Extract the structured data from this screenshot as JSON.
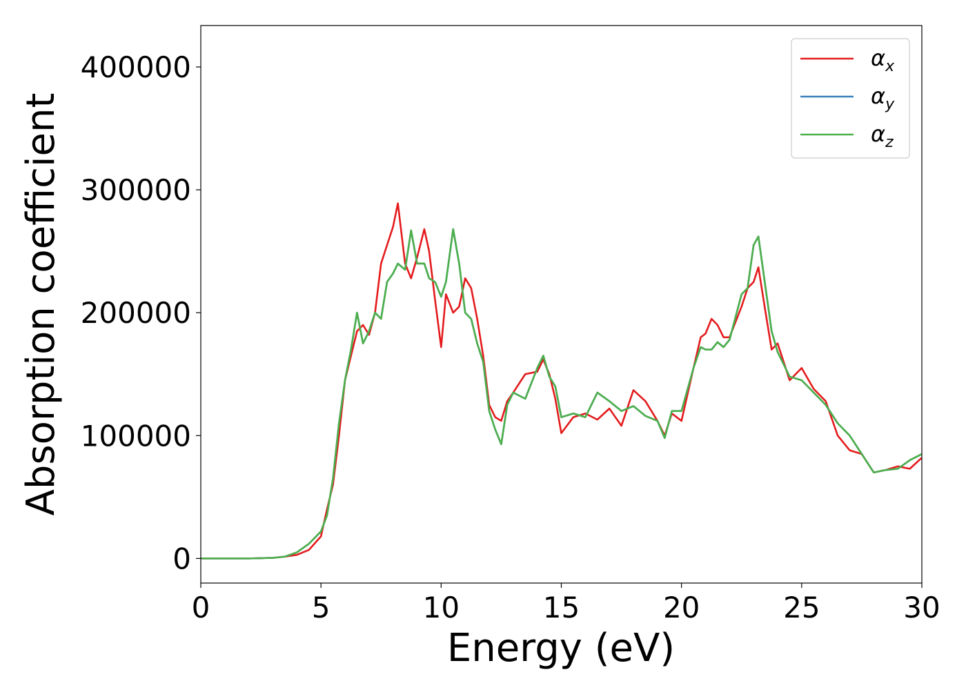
{
  "chart_data": {
    "type": "line",
    "xlabel": "Energy (eV)",
    "ylabel": "Absorption coefficient",
    "x": [
      0,
      1,
      2,
      3,
      3.5,
      4,
      4.5,
      5,
      5.25,
      5.5,
      5.75,
      6,
      6.25,
      6.5,
      6.75,
      7,
      7.25,
      7.5,
      7.75,
      8,
      8.2,
      8.5,
      8.75,
      9,
      9.3,
      9.5,
      9.75,
      10,
      10.2,
      10.5,
      10.75,
      11,
      11.25,
      11.5,
      11.75,
      12,
      12.25,
      12.5,
      12.75,
      13,
      13.5,
      14,
      14.25,
      14.5,
      14.75,
      15,
      15.5,
      16,
      16.5,
      17,
      17.5,
      18,
      18.5,
      19,
      19.3,
      19.6,
      20,
      20.5,
      20.8,
      21,
      21.25,
      21.5,
      21.75,
      22,
      22.5,
      22.75,
      23,
      23.2,
      23.5,
      23.75,
      24,
      24.5,
      25,
      25.5,
      26,
      26.5,
      27,
      27.5,
      28,
      28.5,
      29,
      29.5,
      30
    ],
    "series": [
      {
        "name": "αx",
        "color": "#e41a1c",
        "values": [
          0,
          0,
          0,
          500,
          1500,
          3000,
          7000,
          18000,
          40000,
          60000,
          100000,
          145000,
          165000,
          185000,
          190000,
          182000,
          200000,
          240000,
          255000,
          270000,
          289000,
          240000,
          228000,
          245000,
          268000,
          250000,
          210000,
          172000,
          215000,
          200000,
          205000,
          228000,
          220000,
          195000,
          165000,
          125000,
          115000,
          112000,
          128000,
          135000,
          150000,
          152000,
          162000,
          150000,
          130000,
          102000,
          115000,
          118000,
          113000,
          122000,
          108000,
          137000,
          128000,
          112000,
          100000,
          118000,
          112000,
          155000,
          180000,
          183000,
          195000,
          190000,
          180000,
          180000,
          205000,
          220000,
          225000,
          237000,
          200000,
          170000,
          175000,
          145000,
          155000,
          138000,
          128000,
          100000,
          88000,
          85000,
          70000,
          72000,
          75000,
          73000,
          82000
        ]
      },
      {
        "name": "αy",
        "color": "#377eb8",
        "values": [
          0,
          0,
          0,
          500,
          1500,
          5000,
          12000,
          22000,
          35000,
          65000,
          110000,
          145000,
          170000,
          200000,
          175000,
          185000,
          200000,
          195000,
          225000,
          232000,
          240000,
          235000,
          267000,
          240000,
          240000,
          228000,
          225000,
          213000,
          225000,
          268000,
          240000,
          200000,
          195000,
          175000,
          160000,
          120000,
          105000,
          93000,
          125000,
          135000,
          130000,
          155000,
          165000,
          148000,
          140000,
          115000,
          118000,
          115000,
          135000,
          128000,
          120000,
          124000,
          116000,
          112000,
          98000,
          120000,
          120000,
          155000,
          172000,
          170000,
          170000,
          176000,
          172000,
          178000,
          215000,
          220000,
          255000,
          262000,
          220000,
          185000,
          168000,
          148000,
          145000,
          135000,
          125000,
          110000,
          100000,
          85000,
          70000,
          72000,
          73000,
          80000,
          85000
        ]
      },
      {
        "name": "αz",
        "color": "#4daf4a",
        "values": [
          0,
          0,
          0,
          500,
          1500,
          5000,
          12000,
          22000,
          35000,
          65000,
          110000,
          145000,
          170000,
          200000,
          175000,
          185000,
          200000,
          195000,
          225000,
          232000,
          240000,
          235000,
          267000,
          240000,
          240000,
          228000,
          225000,
          213000,
          225000,
          268000,
          240000,
          200000,
          195000,
          175000,
          160000,
          120000,
          105000,
          93000,
          125000,
          135000,
          130000,
          155000,
          165000,
          148000,
          140000,
          115000,
          118000,
          115000,
          135000,
          128000,
          120000,
          124000,
          116000,
          112000,
          98000,
          120000,
          120000,
          155000,
          172000,
          170000,
          170000,
          176000,
          172000,
          178000,
          215000,
          220000,
          255000,
          262000,
          220000,
          185000,
          168000,
          148000,
          145000,
          135000,
          125000,
          110000,
          100000,
          85000,
          70000,
          72000,
          73000,
          80000,
          85000
        ]
      }
    ],
    "xlim": [
      0,
      30
    ],
    "xticks": [
      0,
      5,
      10,
      15,
      20,
      25,
      30
    ],
    "ylim": [
      -20000,
      433700
    ],
    "yticks": [
      0,
      100000,
      200000,
      300000,
      400000
    ],
    "grid": false,
    "legend": "upper right"
  }
}
